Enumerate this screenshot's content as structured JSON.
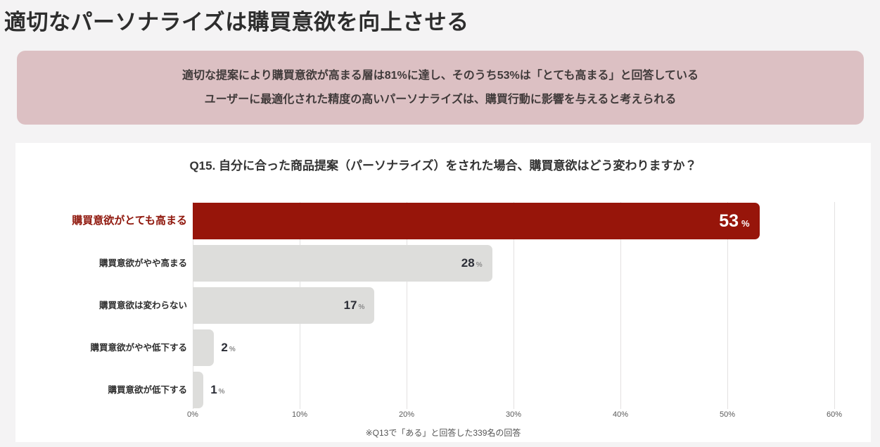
{
  "page": {
    "title": "適切なパーソナライズは購買意欲を向上させる",
    "summary_line1": "適切な提案により購買意欲が高まる層は81%に達し、そのうち53%は「とても高まる」と回答している",
    "summary_line2": "ユーザーに最適化された精度の高いパーソナライズは、購買行動に影響を与えると考えられる"
  },
  "colors": {
    "accent_red": "#97150a",
    "bar_gray": "#dddddb",
    "summary_bg": "#dcc0c3",
    "page_bg": "#f4f3f4",
    "gridline": "#e3e1e1"
  },
  "chart_data": {
    "type": "bar",
    "orientation": "horizontal",
    "title": "Q15. 自分に合った商品提案（パーソナライズ）をされた場合、購買意欲はどう変わりますか？",
    "categories": [
      "購買意欲がとても高まる",
      "購買意欲がやや高まる",
      "購買意欲は変わらない",
      "購買意欲がやや低下する",
      "購買意欲が低下する"
    ],
    "values": [
      53,
      28,
      17,
      2,
      1
    ],
    "unit": "%",
    "highlight_index": 0,
    "xlabel": "",
    "ylabel": "",
    "xlim": [
      0,
      60
    ],
    "x_ticks": [
      "0%",
      "10%",
      "20%",
      "30%",
      "40%",
      "50%",
      "60%"
    ],
    "grid": true,
    "legend": false,
    "note": "※Q13で「ある」と回答した339名の回答"
  }
}
